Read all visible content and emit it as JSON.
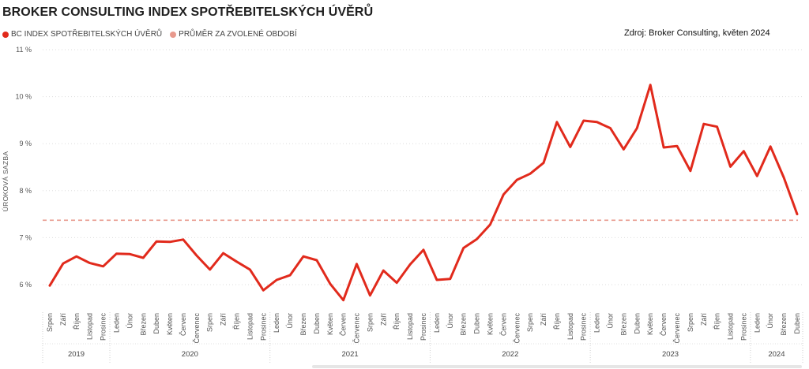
{
  "title": "BROKER CONSULTING INDEX SPOTŘEBITELSKÝCH ÚVĚRŮ",
  "legend": [
    {
      "label": "BC INDEX SPOTŘEBITELSKÝCH ÚVĚRŮ",
      "color": "#e12a1c"
    },
    {
      "label": "PRŮMĚR ZA ZVOLENÉ OBDOBÍ",
      "color": "#e8998d"
    }
  ],
  "source": "Zdroj: Broker Consulting, květen 2024",
  "chart_data": {
    "type": "line",
    "ylabel": "ÚROKOVÁ SAZBA",
    "ylim": [
      5.5,
      11
    ],
    "yticks": [
      6,
      7,
      8,
      9,
      10,
      11
    ],
    "ytick_labels": [
      "6 %",
      "7 %",
      "8 %",
      "9 %",
      "10 %",
      "11 %"
    ],
    "grid": true,
    "average": 7.37,
    "x": [
      "Srpen",
      "Září",
      "Říjen",
      "Listopad",
      "Prosinec",
      "Leden",
      "Únor",
      "Březen",
      "Duben",
      "Květen",
      "Červen",
      "Červenec",
      "Srpen",
      "Září",
      "Říjen",
      "Listopad",
      "Prosinec",
      "Leden",
      "Únor",
      "Březen",
      "Duben",
      "Květen",
      "Červen",
      "Červenec",
      "Srpen",
      "Září",
      "Říjen",
      "Listopad",
      "Prosinec",
      "Leden",
      "Únor",
      "Březen",
      "Duben",
      "Květen",
      "Červen",
      "Červenec",
      "Srpen",
      "Září",
      "Říjen",
      "Listopad",
      "Prosinec",
      "Leden",
      "Únor",
      "Březen",
      "Duben",
      "Květen",
      "Červen",
      "Červenec",
      "Srpen",
      "Září",
      "Říjen",
      "Listopad",
      "Prosinec",
      "Leden",
      "Únor",
      "Březen",
      "Duben"
    ],
    "years": [
      {
        "label": "2019",
        "start": 0,
        "count": 5
      },
      {
        "label": "2020",
        "start": 5,
        "count": 12
      },
      {
        "label": "2021",
        "start": 17,
        "count": 12
      },
      {
        "label": "2022",
        "start": 29,
        "count": 12
      },
      {
        "label": "2023",
        "start": 41,
        "count": 12
      },
      {
        "label": "2024",
        "start": 53,
        "count": 4
      }
    ],
    "series": [
      {
        "color": "#e12a1c",
        "values": [
          5.98,
          6.45,
          6.6,
          6.46,
          6.39,
          6.66,
          6.65,
          6.57,
          6.92,
          6.91,
          6.96,
          6.62,
          6.32,
          6.67,
          6.49,
          6.32,
          5.88,
          6.1,
          6.2,
          6.6,
          6.52,
          6.02,
          5.67,
          6.44,
          5.77,
          6.3,
          6.04,
          6.43,
          6.74,
          6.1,
          6.12,
          6.78,
          6.97,
          7.28,
          7.92,
          8.23,
          8.36,
          8.59,
          9.46,
          8.93,
          9.49,
          9.46,
          9.33,
          8.88,
          9.33,
          10.25,
          8.92,
          8.95,
          8.42,
          9.42,
          9.36,
          8.51,
          8.84,
          8.31,
          8.94,
          8.28,
          7.5
        ]
      }
    ]
  }
}
